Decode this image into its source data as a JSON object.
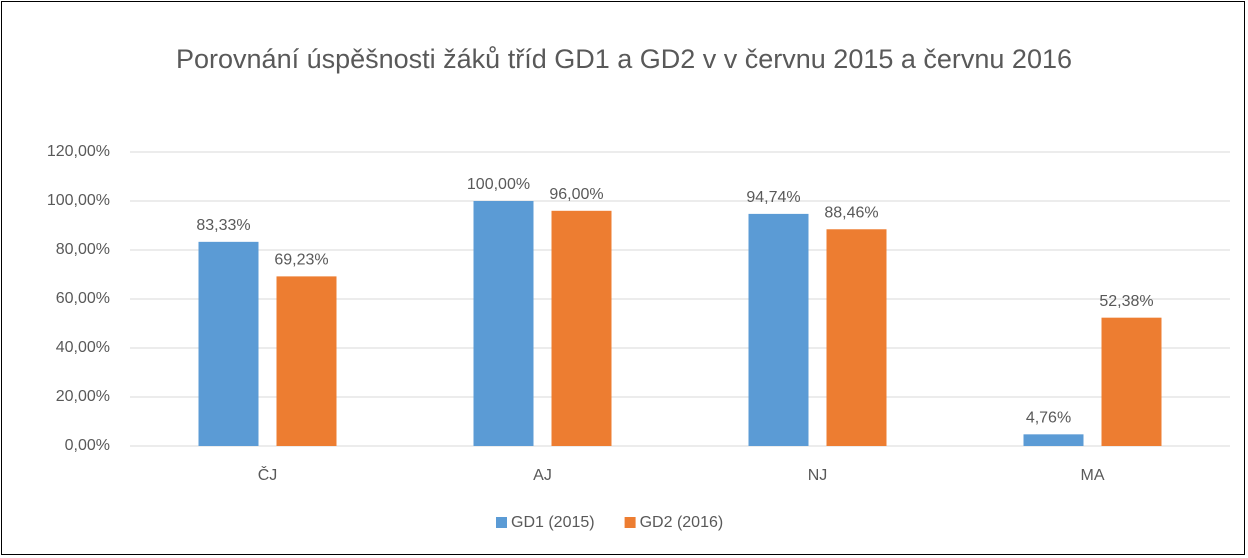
{
  "chart_data": {
    "type": "bar",
    "title": "Porovnání úspěšnosti žáků tříd GD1 a GD2 v v červnu 2015 a červnu 2016",
    "categories": [
      "ČJ",
      "AJ",
      "NJ",
      "MA"
    ],
    "series": [
      {
        "name": "GD1 (2015)",
        "color": "#5b9bd5",
        "values": [
          83.33,
          100,
          94.74,
          4.76
        ],
        "value_labels": [
          "83,33%",
          "100,00%",
          "94,74%",
          "4,76%"
        ]
      },
      {
        "name": "GD2 (2016)",
        "color": "#ed7d31",
        "values": [
          69.23,
          96,
          88.46,
          52.38
        ],
        "value_labels": [
          "69,23%",
          "96,00%",
          "88,46%",
          "52,38%"
        ]
      }
    ],
    "ylim": [
      0,
      120
    ],
    "yticks": [
      {
        "value": 0,
        "label": "0,00%"
      },
      {
        "value": 20,
        "label": "20,00%"
      },
      {
        "value": 40,
        "label": "40,00%"
      },
      {
        "value": 60,
        "label": "60,00%"
      },
      {
        "value": 80,
        "label": "80,00%"
      },
      {
        "value": 100,
        "label": "100,00%"
      },
      {
        "value": 120,
        "label": "120,00%"
      }
    ],
    "grid": true,
    "legend": "bottom"
  }
}
